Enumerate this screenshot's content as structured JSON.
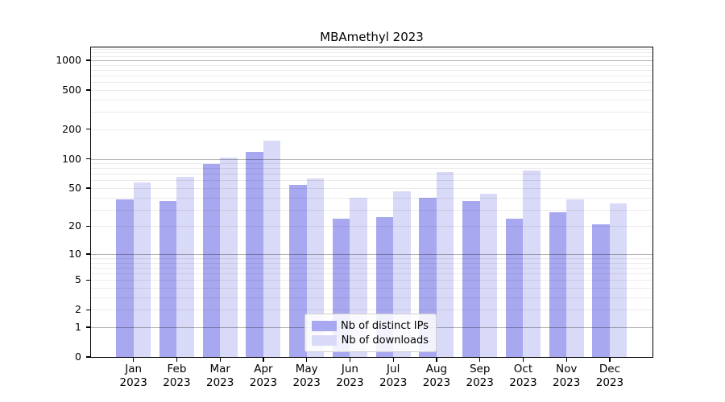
{
  "chart_data": {
    "type": "bar",
    "title": "MBAmethyl 2023",
    "categories": [
      "Jan",
      "Feb",
      "Mar",
      "Apr",
      "May",
      "Jun",
      "Jul",
      "Aug",
      "Sep",
      "Oct",
      "Nov",
      "Dec"
    ],
    "x_year_label": "2023",
    "series": [
      {
        "name": "Nb of distinct IPs",
        "color": "#a8a8f0",
        "values": [
          38,
          37,
          88,
          117,
          54,
          24,
          25,
          40,
          37,
          24,
          28,
          21
        ]
      },
      {
        "name": "Nb of downloads",
        "color": "#d9d9f8",
        "values": [
          57,
          65,
          103,
          153,
          63,
          40,
          46,
          73,
          44,
          76,
          38,
          35
        ]
      }
    ],
    "y_scale": "log10(1+x)",
    "y_ticks": [
      0,
      1,
      2,
      5,
      10,
      20,
      50,
      100,
      200,
      500,
      1000
    ],
    "y_major_gridlines": [
      1,
      10,
      100,
      1000
    ],
    "y_minor_gridline_steps": "2-9 per decade, plus 1100-1300",
    "ylim": [
      0,
      1350
    ],
    "grid": true,
    "legend_position": "inside-bottom-center",
    "bar_color_ips": "#a8a8f0",
    "bar_color_downloads": "#d9d9f8"
  }
}
